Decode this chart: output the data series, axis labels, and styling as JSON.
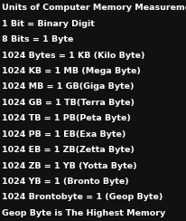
{
  "background_color": "#111111",
  "title": "Units of Computer Memory Measurements",
  "title_fontsize": 6.8,
  "title_bold": true,
  "title_color": "#ffffff",
  "lines": [
    "1 Bit = Binary Digit",
    "8 Bits = 1 Byte",
    "1024 Bytes = 1 KB (Kilo Byte)",
    "1024 KB = 1 MB (Mega Byte)",
    "1024 MB = 1 GB(Giga Byte)",
    "1024 GB = 1 TB(Terra Byte)",
    "1024 TB = 1 PB(Peta Byte)",
    "1024 PB = 1 EB(Exa Byte)",
    "1024 EB = 1 ZB(Zetta Byte)",
    "1024 ZB = 1 YB (Yotta Byte)",
    "1024 YB = 1 (Bronto Byte)",
    "1024 Brontobyte = 1 (Geop Byte)",
    "Geop Byte is The Highest Memory"
  ],
  "line_fontsize": 6.8,
  "line_bold": true,
  "line_color": "#ffffff",
  "figwidth": 2.07,
  "figheight": 2.44,
  "dpi": 100
}
